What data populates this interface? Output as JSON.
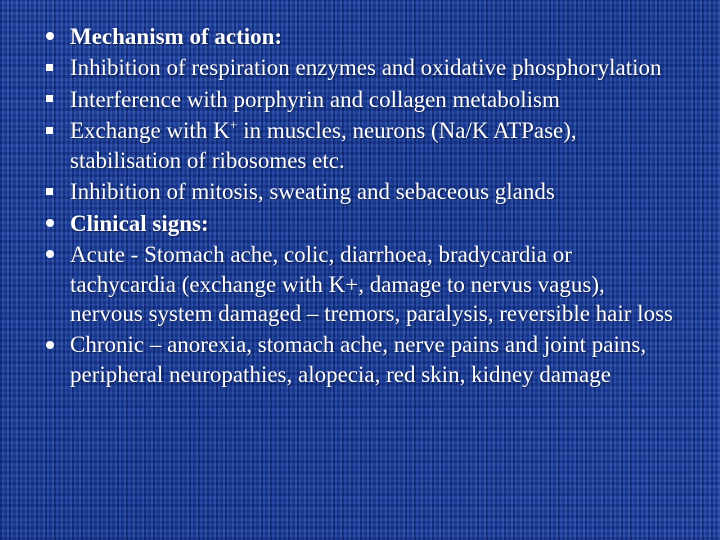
{
  "slide": {
    "text_color": "#ffffff",
    "background_base": "#1a3a8a",
    "font_family": "Times New Roman",
    "font_size_pt": 23,
    "items": [
      {
        "bullet": "disc",
        "bold": true,
        "text": "Mechanism of action:"
      },
      {
        "bullet": "square",
        "bold": false,
        "text": "Inhibition of respiration enzymes and oxidative phosphorylation"
      },
      {
        "bullet": "square",
        "bold": false,
        "text": "Interference with porphyrin and collagen metabolism"
      },
      {
        "bullet": "square",
        "bold": false,
        "text_pre": "Exchange with K",
        "sup": "+",
        "text_post": " in muscles, neurons (Na/K ATPase), stabilisation of ribosomes etc."
      },
      {
        "bullet": "square",
        "bold": false,
        "text": "Inhibition of mitosis, sweating and sebaceous glands"
      },
      {
        "bullet": "disc",
        "bold": true,
        "text": "Clinical signs:"
      },
      {
        "bullet": "disc",
        "bold": false,
        "text": "Acute - Stomach ache, colic, diarrhoea, bradycardia or tachycardia (exchange with K+, damage to nervus vagus), nervous system damaged – tremors, paralysis, reversible hair loss"
      },
      {
        "bullet": "disc",
        "bold": false,
        "text": "Chronic – anorexia, stomach ache, nerve pains and joint pains, peripheral neuropathies, alopecia, red skin, kidney damage"
      }
    ]
  }
}
